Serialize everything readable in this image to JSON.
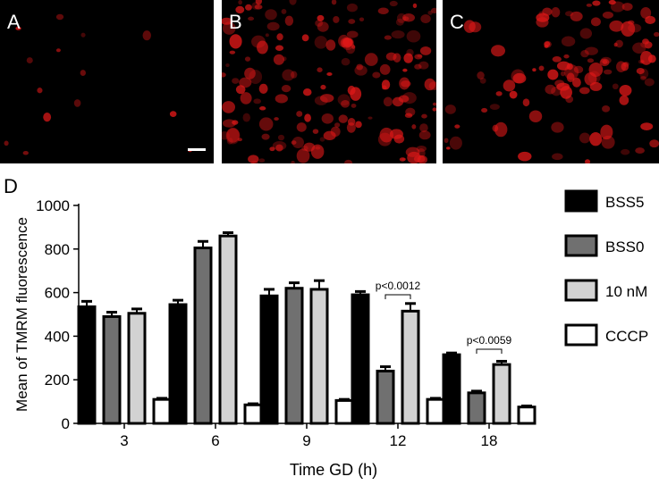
{
  "panels": [
    {
      "letter": "A",
      "density": "sparse"
    },
    {
      "letter": "B",
      "density": "dense"
    },
    {
      "letter": "C",
      "density": "medium"
    }
  ],
  "fluorescence_color": "#e01818",
  "chart_label": "D",
  "chart_data": {
    "type": "bar",
    "xlabel": "Time GD (h)",
    "ylabel": "Mean of TMRM fluorescence",
    "ylim": [
      0,
      1000
    ],
    "yticks": [
      0,
      200,
      400,
      600,
      800,
      1000
    ],
    "categories": [
      "3",
      "6",
      "9",
      "12",
      "18"
    ],
    "series": [
      {
        "name": "BSS5",
        "fill": "#000000",
        "values": [
          535,
          545,
          585,
          590,
          315
        ],
        "errors": [
          25,
          20,
          30,
          15,
          8
        ]
      },
      {
        "name": "BSS0",
        "fill": "#707070",
        "values": [
          490,
          805,
          620,
          240,
          140
        ],
        "errors": [
          20,
          30,
          25,
          20,
          8
        ]
      },
      {
        "name": "10 nM",
        "fill": "#d2d2d2",
        "values": [
          505,
          860,
          615,
          515,
          270
        ],
        "errors": [
          20,
          15,
          40,
          35,
          15
        ]
      },
      {
        "name": "CCCP",
        "fill": "#ffffff",
        "values": [
          110,
          85,
          105,
          110,
          75
        ],
        "errors": [
          5,
          5,
          5,
          5,
          5
        ]
      }
    ],
    "annotations": [
      {
        "text": "p<0.0012",
        "category_index": 3,
        "from_series": 1,
        "to_series": 2,
        "y": 590
      },
      {
        "text": "p<0.0059",
        "category_index": 4,
        "from_series": 1,
        "to_series": 2,
        "y": 340
      }
    ],
    "legend_position": "top-right"
  }
}
